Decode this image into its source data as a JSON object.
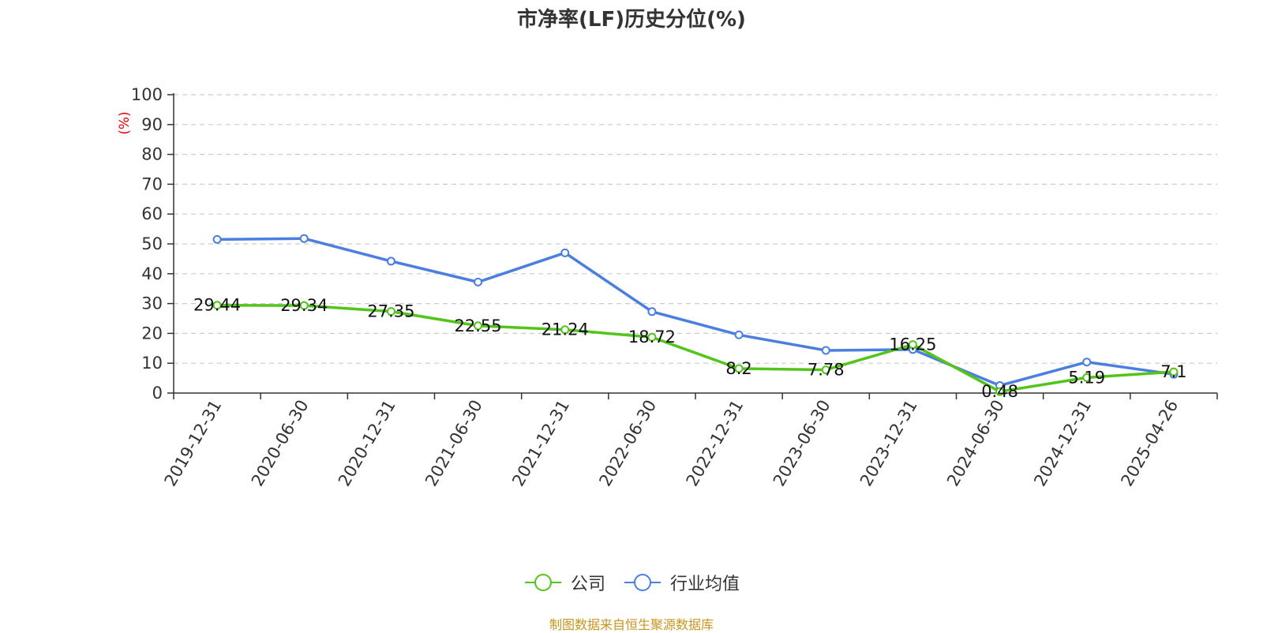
{
  "chart_data": {
    "type": "line",
    "title": "市净率(LF)历史分位(%)",
    "ylabel": "(%)",
    "xlabel": "",
    "ylim": [
      0,
      100
    ],
    "yticks": [
      0,
      10,
      20,
      30,
      40,
      50,
      60,
      70,
      80,
      90,
      100
    ],
    "grid": true,
    "legend_position": "bottom-center",
    "categories": [
      "2019-12-31",
      "2020-06-30",
      "2020-12-31",
      "2021-06-30",
      "2021-12-31",
      "2022-06-30",
      "2022-12-31",
      "2023-06-30",
      "2023-12-31",
      "2024-06-30",
      "2024-12-31",
      "2025-04-26"
    ],
    "series": [
      {
        "name": "公司",
        "color": "#52c41a",
        "show_labels": true,
        "values": [
          29.44,
          29.34,
          27.35,
          22.55,
          21.24,
          18.72,
          8.2,
          7.78,
          16.25,
          0.48,
          5.19,
          7.1
        ]
      },
      {
        "name": "行业均值",
        "color": "#4a7fe0",
        "show_labels": false,
        "values": [
          51.5,
          51.8,
          44.2,
          37.2,
          47.0,
          27.3,
          19.5,
          14.3,
          14.6,
          2.5,
          10.4,
          6.3
        ]
      }
    ]
  },
  "source_note": "制图数据来自恒生聚源数据库"
}
